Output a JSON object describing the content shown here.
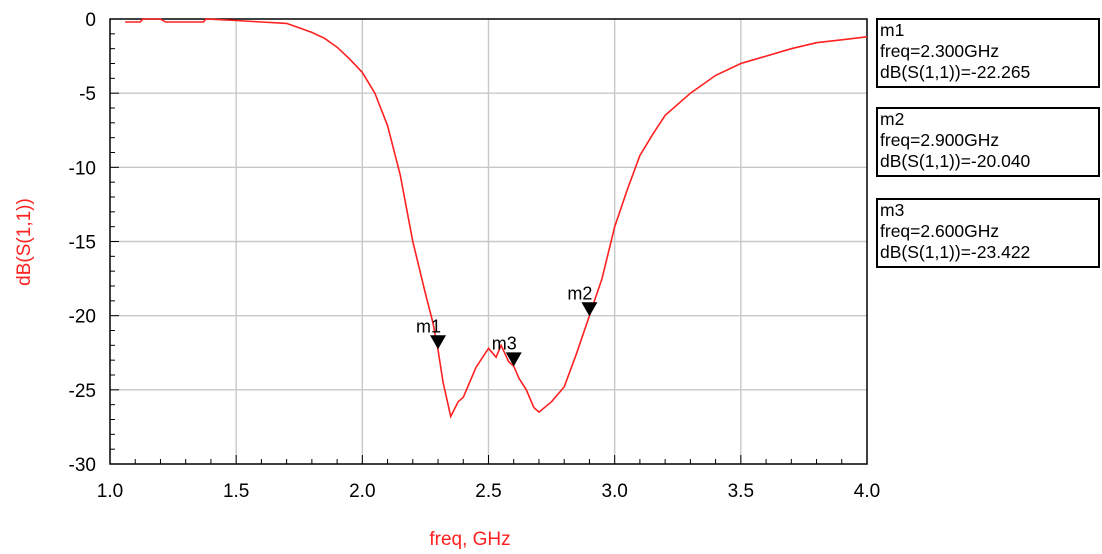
{
  "chart_data": {
    "type": "line",
    "xlabel": "freq, GHz",
    "ylabel": "dB(S(1,1))",
    "xlim": [
      1.0,
      4.0
    ],
    "ylim": [
      -30,
      0
    ],
    "x_ticks": [
      "1.0",
      "1.5",
      "2.0",
      "2.5",
      "3.0",
      "3.5",
      "4.0"
    ],
    "y_ticks": [
      "0",
      "-5",
      "-10",
      "-15",
      "-20",
      "-25",
      "-30"
    ],
    "grid": true,
    "line_color": "#ff2020",
    "series": [
      {
        "x": [
          1.06,
          1.12,
          1.13,
          1.2,
          1.22,
          1.3,
          1.37,
          1.38,
          1.5,
          1.6,
          1.7,
          1.75,
          1.8,
          1.85,
          1.9,
          1.95,
          2.0,
          2.05,
          2.1,
          2.15,
          2.2,
          2.25,
          2.28,
          2.3,
          2.32,
          2.34,
          2.35,
          2.38,
          2.4,
          2.45,
          2.5,
          2.53,
          2.55,
          2.58,
          2.6,
          2.62,
          2.65,
          2.68,
          2.7,
          2.75,
          2.8,
          2.85,
          2.9,
          2.95,
          3.0,
          3.05,
          3.1,
          3.15,
          3.2,
          3.3,
          3.4,
          3.5,
          3.6,
          3.7,
          3.8,
          3.9,
          4.0
        ],
        "y": [
          -0.2,
          -0.2,
          0.0,
          0.0,
          -0.2,
          -0.2,
          -0.2,
          0.0,
          -0.1,
          -0.2,
          -0.3,
          -0.6,
          -0.9,
          -1.3,
          -1.9,
          -2.7,
          -3.6,
          -5.0,
          -7.2,
          -10.5,
          -15.0,
          -18.5,
          -20.5,
          -22.3,
          -24.5,
          -26.0,
          -26.8,
          -25.8,
          -25.5,
          -23.5,
          -22.2,
          -22.8,
          -22.0,
          -23.1,
          -23.4,
          -24.2,
          -25.0,
          -26.2,
          -26.5,
          -25.8,
          -24.8,
          -22.5,
          -20.0,
          -17.5,
          -14.0,
          -11.5,
          -9.2,
          -7.8,
          -6.5,
          -5.0,
          -3.8,
          -3.0,
          -2.5,
          -2.0,
          -1.6,
          -1.4,
          -1.2
        ]
      }
    ],
    "markers": [
      {
        "name": "m1",
        "freq": "2.300GHz",
        "x": 2.3,
        "y": -22.265
      },
      {
        "name": "m2",
        "freq": "2.900GHz",
        "x": 2.9,
        "y": -20.04
      },
      {
        "name": "m3",
        "freq": "2.600GHz",
        "x": 2.6,
        "y": -23.422
      }
    ]
  },
  "marker_boxes": [
    {
      "name": "m1",
      "freq_text": "freq=2.300GHz",
      "value_text": "dB(S(1,1))=-22.265"
    },
    {
      "name": "m2",
      "freq_text": "freq=2.900GHz",
      "value_text": "dB(S(1,1))=-20.040"
    },
    {
      "name": "m3",
      "freq_text": "freq=2.600GHz",
      "value_text": "dB(S(1,1))=-23.422"
    }
  ]
}
